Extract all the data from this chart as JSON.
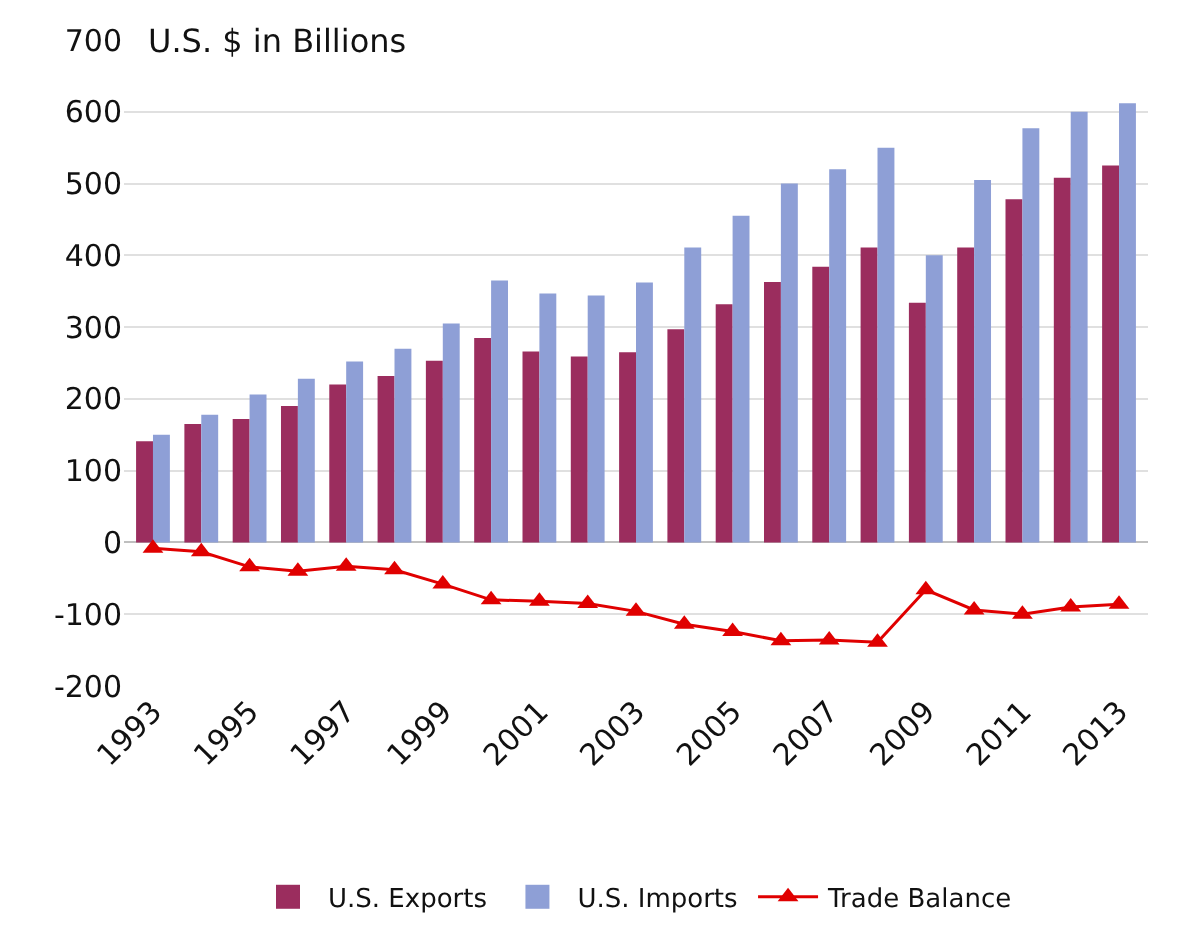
{
  "chart_data": {
    "type": "bar",
    "title": "U.S. $ in Billions",
    "categories": [
      "1993",
      null,
      "1995",
      null,
      "1997",
      null,
      "1999",
      null,
      "2001",
      null,
      "2003",
      null,
      "2005",
      null,
      "2007",
      null,
      "2009",
      null,
      "2011",
      null,
      "2013"
    ],
    "series": [
      {
        "name": "U.S. Exports",
        "color": "#9b2d5e",
        "values": [
          141,
          165,
          172,
          190,
          220,
          232,
          253,
          285,
          266,
          259,
          265,
          297,
          332,
          363,
          384,
          411,
          334,
          411,
          478,
          508,
          525
        ]
      },
      {
        "name": "U.S. Imports",
        "color": "#8e9fd6",
        "values": [
          150,
          178,
          206,
          228,
          252,
          270,
          305,
          365,
          347,
          344,
          362,
          411,
          455,
          500,
          520,
          550,
          400,
          505,
          577,
          600,
          612
        ]
      },
      {
        "name": "Trade Balance",
        "type": "line",
        "color": "#e00000",
        "marker": "triangle",
        "values": [
          -8,
          -13,
          -34,
          -40,
          -33,
          -38,
          -58,
          -80,
          -82,
          -85,
          -96,
          -114,
          -124,
          -137,
          -136,
          -139,
          -66,
          -94,
          -100,
          -90,
          -86
        ]
      }
    ],
    "ylim": [
      -200,
      700
    ],
    "yticks": [
      -200,
      -100,
      0,
      100,
      200,
      300,
      400,
      500,
      600,
      700
    ],
    "grid": "y",
    "legend": "bottom"
  }
}
